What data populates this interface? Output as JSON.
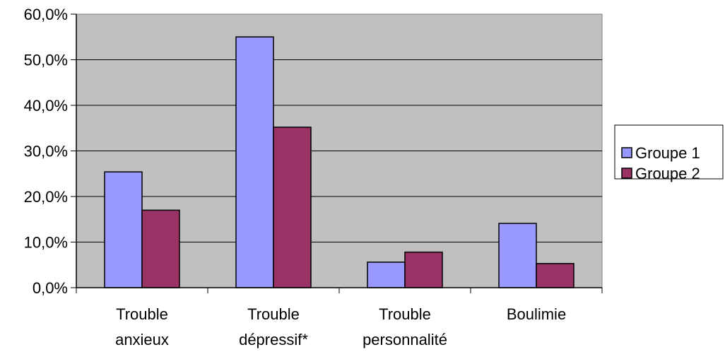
{
  "chart_data": {
    "type": "bar",
    "categories": [
      [
        "Trouble",
        "anxieux"
      ],
      [
        "Trouble",
        "dépressif*"
      ],
      [
        "Trouble",
        "personnalité"
      ],
      [
        "Boulimie"
      ]
    ],
    "series": [
      {
        "name": "Groupe 1",
        "color": "#9999ff",
        "values": [
          25.4,
          55.0,
          5.6,
          14.1
        ]
      },
      {
        "name": "Groupe 2",
        "color": "#993366",
        "values": [
          17.0,
          35.2,
          7.8,
          5.3
        ]
      }
    ],
    "y_ticks": [
      "0,0%",
      "10,0%",
      "20,0%",
      "30,0%",
      "40,0%",
      "50,0%",
      "60,0%"
    ],
    "ylim": [
      0,
      60
    ],
    "grid": true,
    "legend_position": "right",
    "plot_background": "#c0c0c0"
  }
}
